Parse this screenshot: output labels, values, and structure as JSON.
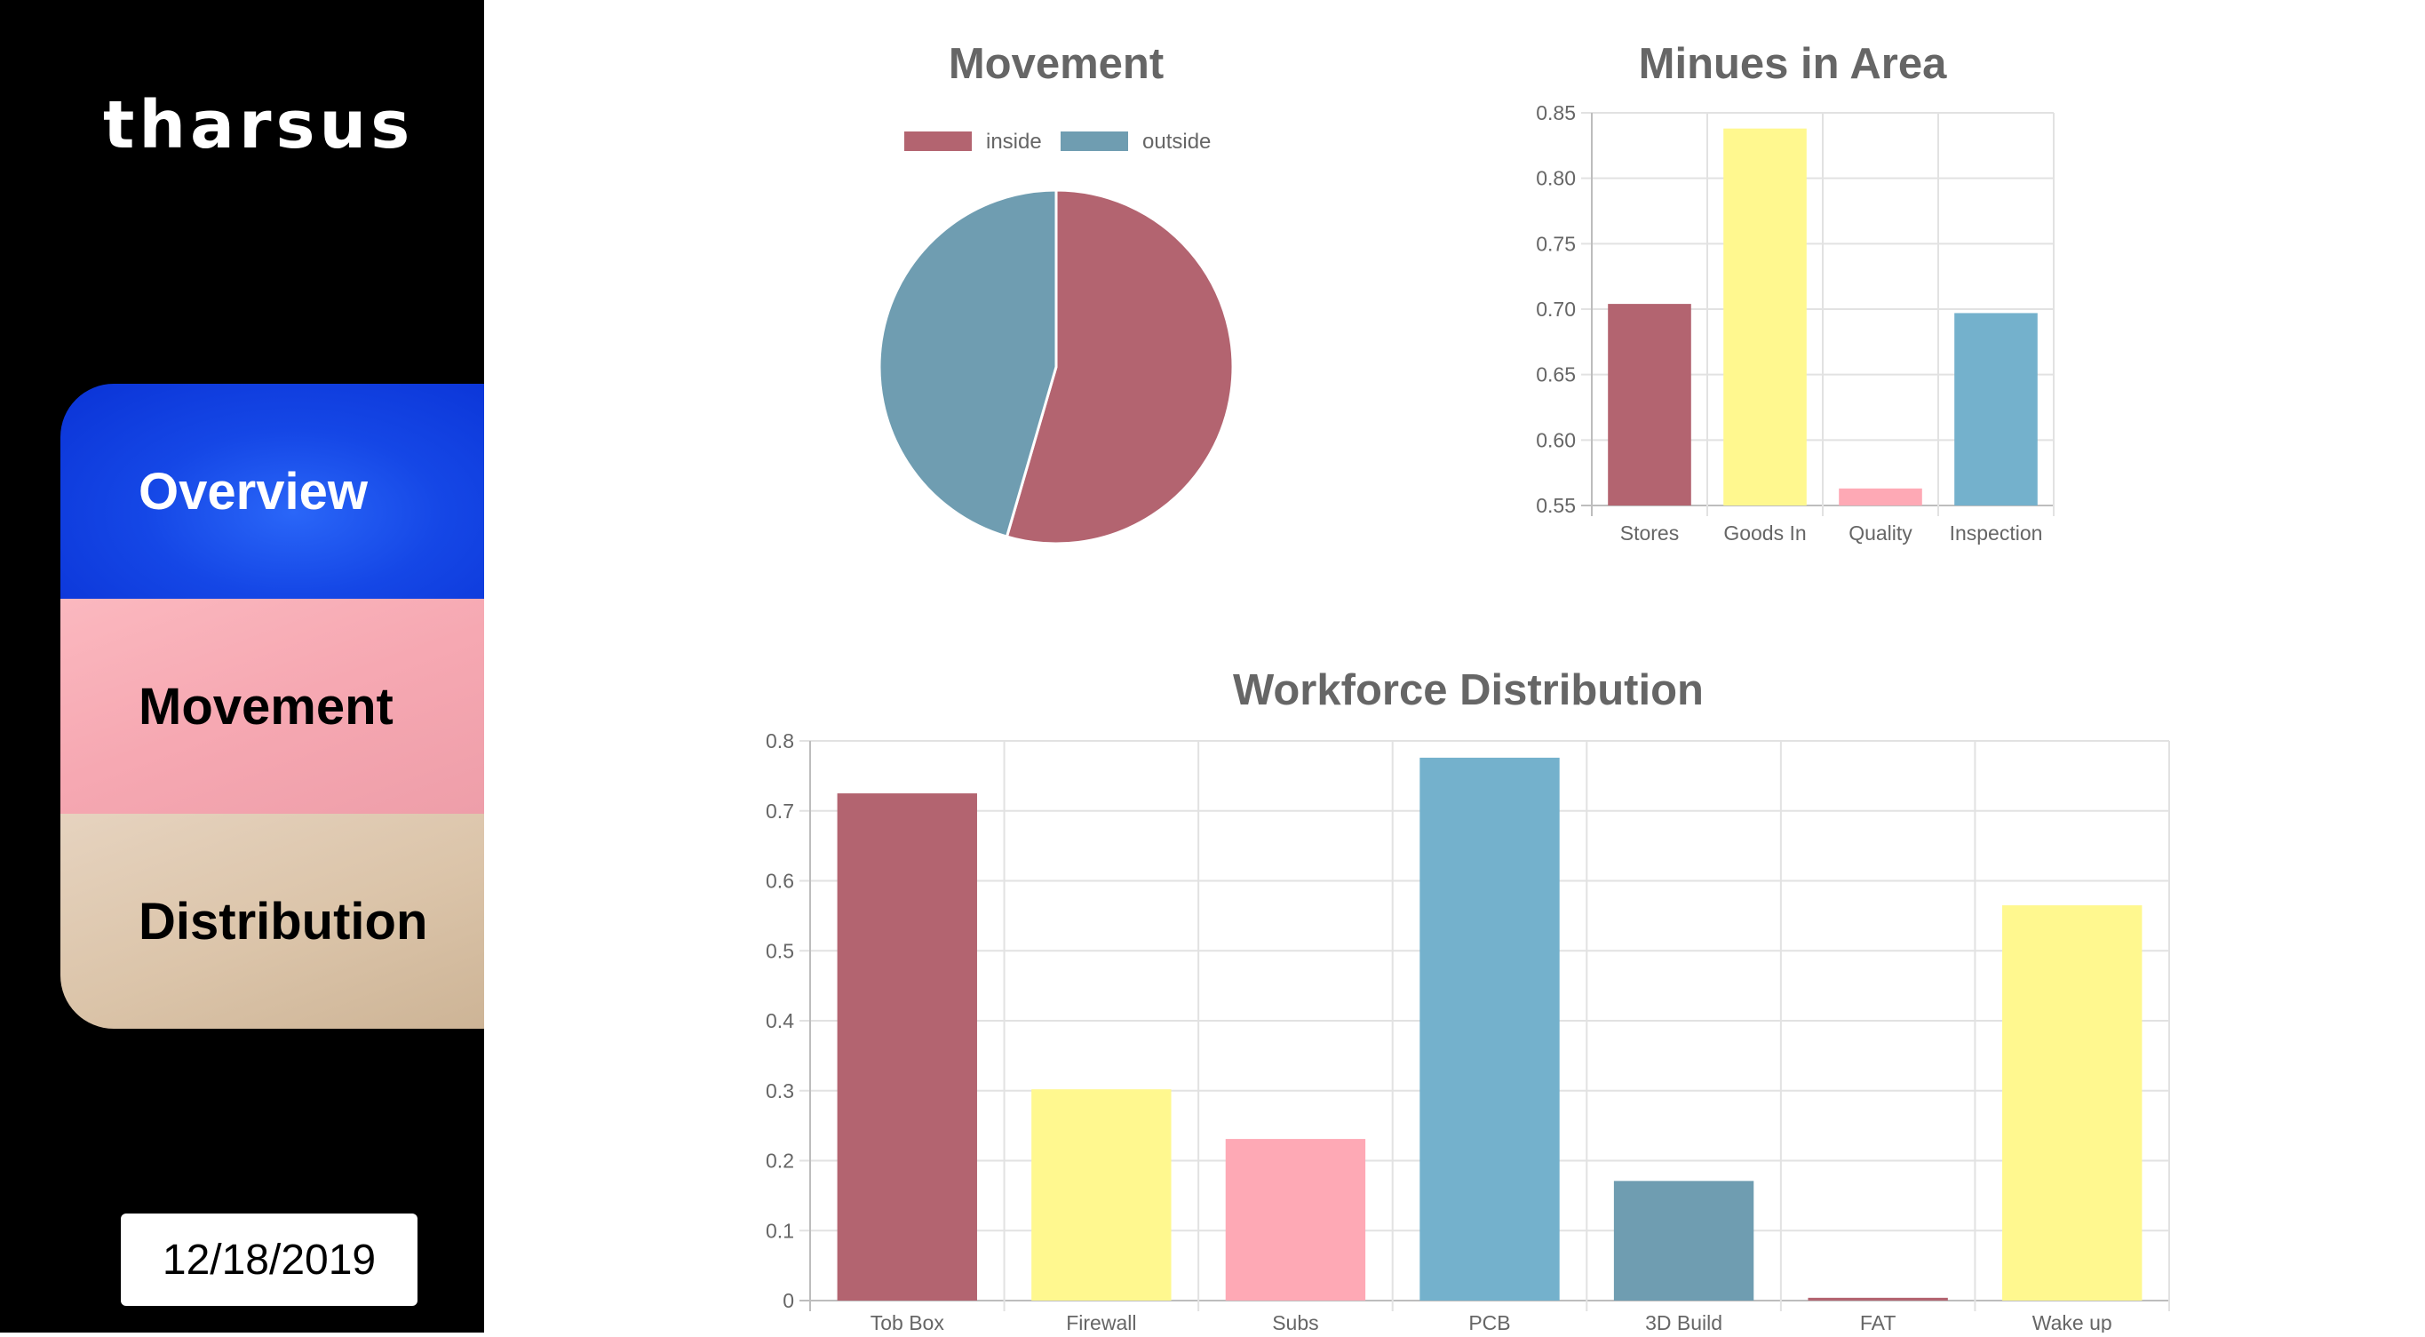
{
  "sidebar": {
    "logo": "tharsus",
    "nav": [
      {
        "label": "Overview"
      },
      {
        "label": "Movement"
      },
      {
        "label": "Distribution"
      }
    ],
    "date": "12/18/2019"
  },
  "colors": {
    "red": "#b36470",
    "yellow": "#fff88f",
    "pink": "#fea9b5",
    "blue": "#74b1cc",
    "steel": "#6f9db1"
  },
  "chart_data": [
    {
      "id": "movement",
      "type": "pie",
      "title": "Movement",
      "legend_position": "top",
      "labels": [
        "inside",
        "outside"
      ],
      "values": [
        54.5,
        45.5
      ],
      "colors": [
        "#b36470",
        "#6f9db1"
      ]
    },
    {
      "id": "minutes",
      "type": "bar",
      "title": "Minues in Area",
      "categories": [
        "Stores",
        "Goods In",
        "Quality",
        "Inspection"
      ],
      "values": [
        0.704,
        0.838,
        0.563,
        0.697
      ],
      "colors": [
        "#b36470",
        "#fff88f",
        "#fea9b5",
        "#74b1cc"
      ],
      "ylim": [
        0.55,
        0.85
      ],
      "yticks": [
        "0.85",
        "0.80",
        "0.75",
        "0.70",
        "0.65",
        "0.60",
        "0.55"
      ],
      "grid": true
    },
    {
      "id": "workforce",
      "type": "bar",
      "title": "Workforce Distribution",
      "categories": [
        "Tob Box",
        "Firewall",
        "Subs",
        "PCB",
        "3D Build",
        "FAT",
        "Wake up"
      ],
      "values": [
        0.725,
        0.302,
        0.231,
        0.776,
        0.171,
        0.004,
        0.565
      ],
      "colors": [
        "#b36470",
        "#fff88f",
        "#fea9b5",
        "#74b1cc",
        "#6f9db1",
        "#b36470",
        "#fff88f"
      ],
      "ylim": [
        0,
        0.8
      ],
      "yticks": [
        "0.8",
        "0.7",
        "0.6",
        "0.5",
        "0.4",
        "0.3",
        "0.2",
        "0.1",
        "0"
      ],
      "grid": true
    }
  ]
}
